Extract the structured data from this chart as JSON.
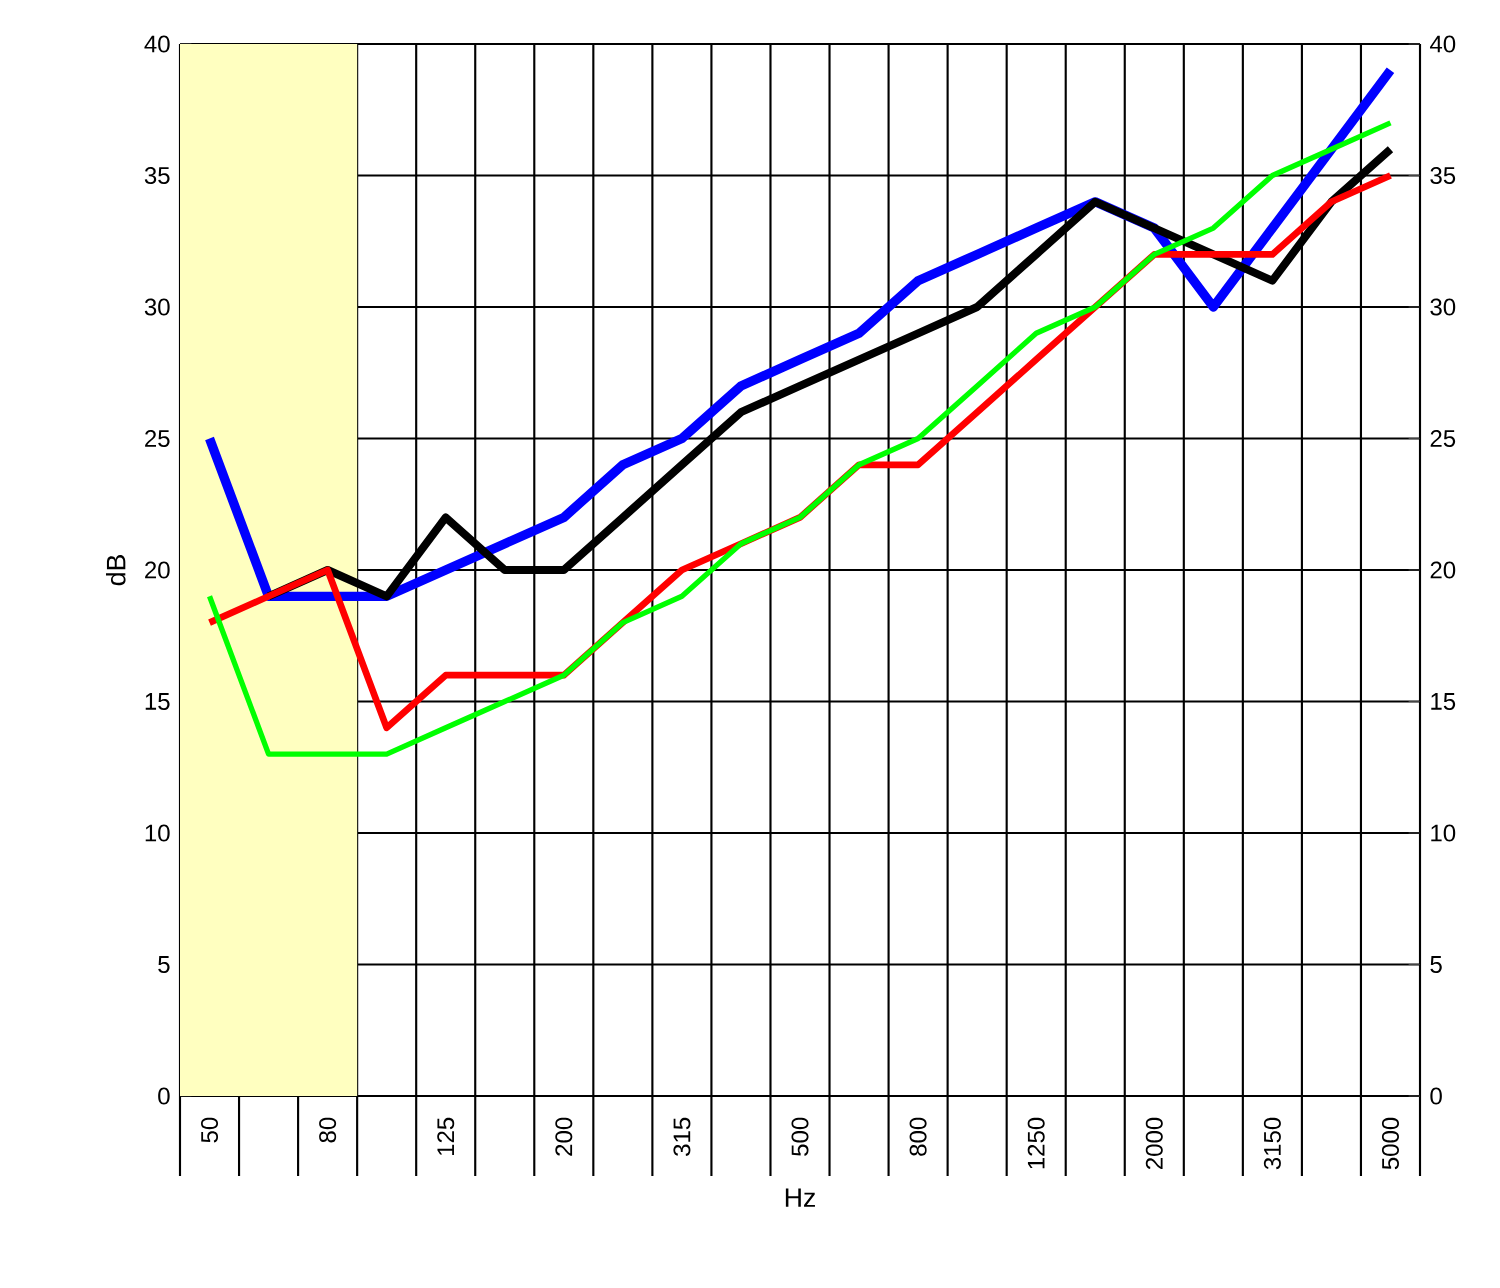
{
  "chart_data": {
    "type": "line",
    "xlabel": "Hz",
    "ylabel": "dB",
    "categories": [
      "50",
      null,
      "80",
      null,
      "125",
      null,
      "200",
      null,
      "315",
      null,
      "500",
      null,
      "800",
      null,
      "1250",
      null,
      "2000",
      null,
      "3150",
      null,
      "5000"
    ],
    "series": [
      {
        "color": "#0000ff",
        "values": [
          25,
          19,
          19,
          19,
          20,
          21,
          22,
          24,
          25,
          27,
          28,
          29,
          31,
          32,
          33,
          34,
          33,
          30,
          33,
          36,
          39
        ]
      },
      {
        "color": "#000000",
        "values": [
          null,
          19,
          20,
          19,
          22,
          20,
          20,
          22,
          24,
          26,
          27,
          28,
          29,
          30,
          32,
          34,
          33,
          32,
          31,
          34,
          36
        ]
      },
      {
        "color": "#ff0000",
        "values": [
          18,
          19,
          20,
          14,
          16,
          16,
          16,
          18,
          20,
          21,
          22,
          24,
          24,
          26,
          28,
          30,
          32,
          32,
          32,
          34,
          35
        ]
      },
      {
        "color": "#00ff00",
        "values": [
          19,
          13,
          13,
          13,
          14,
          15,
          16,
          18,
          19,
          21,
          22,
          24,
          25,
          27,
          29,
          30,
          32,
          33,
          35,
          36,
          37
        ]
      }
    ],
    "ylim": [
      0,
      40
    ],
    "yticks": [
      0,
      5,
      10,
      15,
      20,
      25,
      30,
      35,
      40
    ],
    "y2lim": [
      0,
      40
    ],
    "y2ticks": [
      0,
      5,
      10,
      15,
      20,
      25,
      30,
      35,
      40
    ],
    "bands": [
      {
        "axis": "x",
        "from": "50",
        "to": "80",
        "color": "#ffffc0"
      }
    ],
    "grid": true,
    "marker": "none",
    "line_style": "solid"
  }
}
